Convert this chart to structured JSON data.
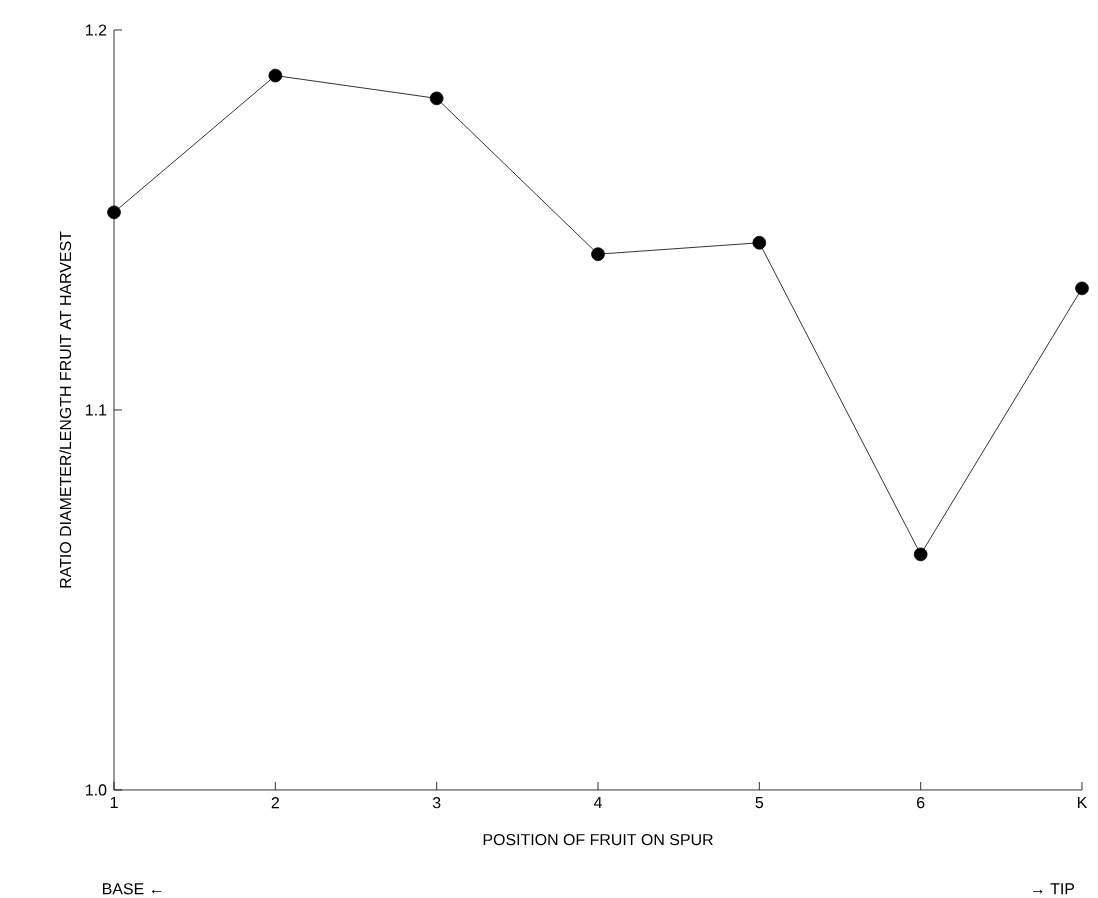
{
  "chart_data": {
    "type": "line",
    "categories": [
      "1",
      "2",
      "3",
      "4",
      "5",
      "6",
      "K"
    ],
    "series": [
      {
        "color": "#000000",
        "values": [
          1.152,
          1.188,
          1.182,
          1.141,
          1.144,
          1.062,
          1.132
        ]
      }
    ],
    "ylim": [
      1.0,
      1.2
    ],
    "yticks": [
      {
        "value": 1.0,
        "label": "1.0"
      },
      {
        "value": 1.1,
        "label": "1.1"
      },
      {
        "value": 1.2,
        "label": "1.2"
      }
    ],
    "xlabel": "POSITION OF FRUIT ON SPUR",
    "ylabel": "RATIO DIAMETER/LENGTH FRUIT AT HARVEST",
    "annotations": [
      "BASE ←",
      "→ TIP"
    ],
    "marker": "circle",
    "line_style": "solid",
    "grid": false
  }
}
